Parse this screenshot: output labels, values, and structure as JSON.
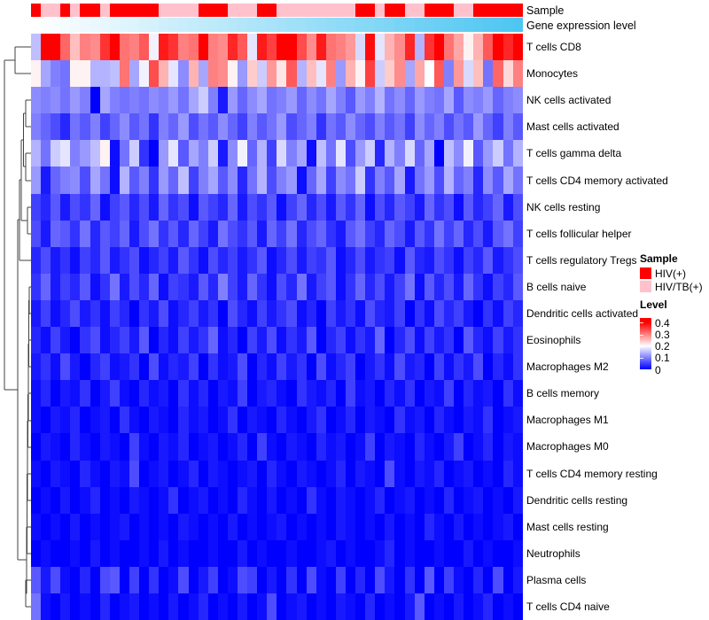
{
  "figure": {
    "background": "#FFFFFF"
  },
  "chart_data": {
    "type": "heatmap",
    "n_columns": 50,
    "row_labels": [
      "T cells CD8",
      "Monocytes",
      "NK cells activated",
      "Mast cells activated",
      "T cells gamma delta",
      "T cells CD4 memory activated",
      "NK cells resting",
      "T cells follicular helper",
      "T cells regulatory  Tregs",
      "B cells naive",
      "Dendritic cells activated",
      "Eosinophils",
      "Macrophages M2",
      "B cells memory",
      "Macrophages M1",
      "Macrophages M0",
      "T cells CD4 memory resting",
      "Dendritic cells resting",
      "Mast cells resting",
      "Neutrophils",
      "Plasma cells",
      "T cells CD4 naive"
    ],
    "color_scale": {
      "min": 0,
      "mid": 0.2,
      "max": 0.4,
      "low": "#0000FF",
      "mid_color": "#FFFFFF",
      "high": "#FF0000"
    },
    "values": [
      [
        0.15,
        0.44,
        0.42,
        0.32,
        0.25,
        0.3,
        0.29,
        0.36,
        0.43,
        0.31,
        0.3,
        0.33,
        0.19,
        0.38,
        0.36,
        0.3,
        0.31,
        0.44,
        0.3,
        0.29,
        0.37,
        0.33,
        0.18,
        0.38,
        0.35,
        0.41,
        0.44,
        0.34,
        0.29,
        0.38,
        0.31,
        0.3,
        0.28,
        0.17,
        0.39,
        0.18,
        0.26,
        0.29,
        0.37,
        0.14,
        0.36,
        0.42,
        0.31,
        0.27,
        0.21,
        0.26,
        0.33,
        0.41,
        0.37,
        0.44
      ],
      [
        0.21,
        0.13,
        0.1,
        0.09,
        0.21,
        0.21,
        0.14,
        0.14,
        0.15,
        0.31,
        0.13,
        0.19,
        0.34,
        0.26,
        0.18,
        0.11,
        0.26,
        0.13,
        0.3,
        0.29,
        0.21,
        0.12,
        0.24,
        0.16,
        0.28,
        0.22,
        0.33,
        0.14,
        0.25,
        0.18,
        0.3,
        0.12,
        0.26,
        0.21,
        0.35,
        0.16,
        0.24,
        0.29,
        0.13,
        0.27,
        0.2,
        0.33,
        0.1,
        0.28,
        0.17,
        0.25,
        0.09,
        0.32,
        0.23,
        0.3
      ],
      [
        0.11,
        0.1,
        0.11,
        0.09,
        0.12,
        0.1,
        0.0,
        0.13,
        0.1,
        0.09,
        0.1,
        0.09,
        0.11,
        0.1,
        0.12,
        0.09,
        0.13,
        0.16,
        0.1,
        0.02,
        0.12,
        0.08,
        0.11,
        0.13,
        0.09,
        0.1,
        0.12,
        0.08,
        0.11,
        0.09,
        0.13,
        0.1,
        0.07,
        0.12,
        0.1,
        0.14,
        0.09,
        0.11,
        0.08,
        0.12,
        0.1,
        0.09,
        0.13,
        0.07,
        0.11,
        0.1,
        0.12,
        0.08,
        0.1,
        0.11
      ],
      [
        0.1,
        0.08,
        0.06,
        0.03,
        0.09,
        0.07,
        0.1,
        0.05,
        0.08,
        0.11,
        0.07,
        0.09,
        0.04,
        0.1,
        0.08,
        0.12,
        0.06,
        0.09,
        0.07,
        0.11,
        0.08,
        0.05,
        0.1,
        0.07,
        0.09,
        0.12,
        0.06,
        0.08,
        0.1,
        0.04,
        0.09,
        0.07,
        0.11,
        0.08,
        0.06,
        0.1,
        0.07,
        0.09,
        0.05,
        0.11,
        0.08,
        0.1,
        0.06,
        0.09,
        0.07,
        0.12,
        0.08,
        0.05,
        0.1,
        0.07
      ],
      [
        0.14,
        0.09,
        0.16,
        0.18,
        0.1,
        0.12,
        0.15,
        0.21,
        0.01,
        0.09,
        0.16,
        0.04,
        0.0,
        0.12,
        0.18,
        0.07,
        0.13,
        0.1,
        0.16,
        0.02,
        0.11,
        0.19,
        0.08,
        0.14,
        0.05,
        0.17,
        0.1,
        0.13,
        0.01,
        0.15,
        0.09,
        0.18,
        0.06,
        0.12,
        0.16,
        0.03,
        0.14,
        0.1,
        0.17,
        0.08,
        0.13,
        0.0,
        0.15,
        0.11,
        0.19,
        0.07,
        0.12,
        0.16,
        0.09,
        0.14
      ],
      [
        0.12,
        0.02,
        0.08,
        0.1,
        0.11,
        0.06,
        0.13,
        0.09,
        0.01,
        0.14,
        0.07,
        0.1,
        0.04,
        0.12,
        0.08,
        0.15,
        0.05,
        0.1,
        0.13,
        0.07,
        0.11,
        0.03,
        0.09,
        0.14,
        0.06,
        0.1,
        0.12,
        0.01,
        0.08,
        0.13,
        0.05,
        0.11,
        0.09,
        0.16,
        0.04,
        0.1,
        0.07,
        0.13,
        0.02,
        0.09,
        0.12,
        0.06,
        0.14,
        0.08,
        0.1,
        0.03,
        0.11,
        0.07,
        0.13,
        0.09
      ],
      [
        0.05,
        0.03,
        0.07,
        0.02,
        0.06,
        0.04,
        0.08,
        0.01,
        0.05,
        0.07,
        0.03,
        0.06,
        0.02,
        0.08,
        0.04,
        0.06,
        0.01,
        0.07,
        0.05,
        0.03,
        0.08,
        0.02,
        0.06,
        0.04,
        0.07,
        0.01,
        0.05,
        0.08,
        0.03,
        0.06,
        0.02,
        0.07,
        0.04,
        0.08,
        0.01,
        0.06,
        0.03,
        0.07,
        0.05,
        0.02,
        0.08,
        0.04,
        0.06,
        0.01,
        0.07,
        0.03,
        0.05,
        0.08,
        0.02,
        0.06
      ],
      [
        0.06,
        0.02,
        0.08,
        0.07,
        0.04,
        0.09,
        0.03,
        0.07,
        0.05,
        0.08,
        0.02,
        0.06,
        0.09,
        0.04,
        0.07,
        0.03,
        0.08,
        0.05,
        0.02,
        0.09,
        0.06,
        0.04,
        0.07,
        0.02,
        0.08,
        0.05,
        0.09,
        0.03,
        0.06,
        0.08,
        0.04,
        0.02,
        0.07,
        0.09,
        0.05,
        0.03,
        0.08,
        0.06,
        0.02,
        0.07,
        0.04,
        0.09,
        0.05,
        0.08,
        0.03,
        0.06,
        0.02,
        0.07,
        0.09,
        0.05
      ],
      [
        0.03,
        0.06,
        0.02,
        0.04,
        0.01,
        0.05,
        0.03,
        0.07,
        0.02,
        0.04,
        0.06,
        0.01,
        0.03,
        0.05,
        0.02,
        0.07,
        0.04,
        0.01,
        0.06,
        0.03,
        0.05,
        0.02,
        0.04,
        0.07,
        0.01,
        0.03,
        0.06,
        0.02,
        0.05,
        0.04,
        0.07,
        0.01,
        0.03,
        0.06,
        0.02,
        0.04,
        0.05,
        0.01,
        0.07,
        0.03,
        0.02,
        0.06,
        0.04,
        0.01,
        0.05,
        0.03,
        0.07,
        0.02,
        0.04,
        0.06
      ],
      [
        0.04,
        0.08,
        0.02,
        0.05,
        0.03,
        0.07,
        0.01,
        0.04,
        0.09,
        0.02,
        0.06,
        0.03,
        0.08,
        0.01,
        0.05,
        0.04,
        0.02,
        0.07,
        0.03,
        0.1,
        0.05,
        0.02,
        0.08,
        0.04,
        0.01,
        0.06,
        0.03,
        0.09,
        0.02,
        0.05,
        0.07,
        0.01,
        0.04,
        0.08,
        0.03,
        0.06,
        0.02,
        0.05,
        0.09,
        0.01,
        0.07,
        0.03,
        0.06,
        0.02,
        0.08,
        0.04,
        0.01,
        0.05,
        0.03,
        0.07
      ],
      [
        0.02,
        0.05,
        0.01,
        0.03,
        0.06,
        0.02,
        0.04,
        0.01,
        0.05,
        0.03,
        0.0,
        0.04,
        0.02,
        0.06,
        0.01,
        0.03,
        0.05,
        0.02,
        0.04,
        0.0,
        0.06,
        0.03,
        0.01,
        0.05,
        0.02,
        0.04,
        0.06,
        0.01,
        0.03,
        0.0,
        0.05,
        0.02,
        0.04,
        0.01,
        0.06,
        0.03,
        0.02,
        0.05,
        0.0,
        0.04,
        0.01,
        0.06,
        0.03,
        0.05,
        0.02,
        0.0,
        0.04,
        0.01,
        0.05,
        0.03
      ],
      [
        0.03,
        0.01,
        0.05,
        0.02,
        0.0,
        0.04,
        0.06,
        0.01,
        0.03,
        0.05,
        0.02,
        0.07,
        0.0,
        0.03,
        0.01,
        0.05,
        0.02,
        0.04,
        0.08,
        0.01,
        0.03,
        0.0,
        0.05,
        0.02,
        0.06,
        0.01,
        0.04,
        0.02,
        0.07,
        0.0,
        0.03,
        0.05,
        0.01,
        0.04,
        0.02,
        0.08,
        0.0,
        0.03,
        0.06,
        0.01,
        0.05,
        0.02,
        0.04,
        0.0,
        0.07,
        0.03,
        0.01,
        0.05,
        0.02,
        0.04
      ],
      [
        0.02,
        0.04,
        0.01,
        0.06,
        0.02,
        0.0,
        0.03,
        0.05,
        0.01,
        0.02,
        0.04,
        0.0,
        0.06,
        0.01,
        0.03,
        0.02,
        0.05,
        0.0,
        0.04,
        0.01,
        0.02,
        0.06,
        0.0,
        0.03,
        0.01,
        0.05,
        0.02,
        0.04,
        0.0,
        0.06,
        0.01,
        0.03,
        0.05,
        0.0,
        0.02,
        0.04,
        0.01,
        0.06,
        0.02,
        0.03,
        0.0,
        0.05,
        0.01,
        0.04,
        0.02,
        0.06,
        0.0,
        0.03,
        0.01,
        0.04
      ],
      [
        0.01,
        0.03,
        0.0,
        0.02,
        0.01,
        0.04,
        0.0,
        0.02,
        0.05,
        0.01,
        0.0,
        0.03,
        0.01,
        0.02,
        0.0,
        0.04,
        0.01,
        0.03,
        0.0,
        0.02,
        0.01,
        0.05,
        0.0,
        0.02,
        0.03,
        0.01,
        0.0,
        0.04,
        0.02,
        0.01,
        0.03,
        0.0,
        0.05,
        0.01,
        0.02,
        0.0,
        0.03,
        0.01,
        0.04,
        0.0,
        0.02,
        0.01,
        0.05,
        0.0,
        0.03,
        0.01,
        0.02,
        0.0,
        0.04,
        0.01
      ],
      [
        0.01,
        0.0,
        0.02,
        0.01,
        0.03,
        0.0,
        0.01,
        0.02,
        0.0,
        0.04,
        0.01,
        0.0,
        0.02,
        0.01,
        0.0,
        0.03,
        0.01,
        0.02,
        0.0,
        0.01,
        0.04,
        0.0,
        0.02,
        0.01,
        0.0,
        0.03,
        0.01,
        0.0,
        0.02,
        0.04,
        0.0,
        0.01,
        0.03,
        0.0,
        0.02,
        0.01,
        0.0,
        0.04,
        0.01,
        0.02,
        0.0,
        0.03,
        0.01,
        0.0,
        0.02,
        0.01,
        0.04,
        0.0,
        0.01,
        0.02
      ],
      [
        0.0,
        0.02,
        0.01,
        0.0,
        0.03,
        0.01,
        0.0,
        0.02,
        0.01,
        0.0,
        0.05,
        0.01,
        0.0,
        0.02,
        0.01,
        0.03,
        0.0,
        0.01,
        0.02,
        0.0,
        0.01,
        0.03,
        0.0,
        0.05,
        0.01,
        0.0,
        0.02,
        0.01,
        0.0,
        0.03,
        0.01,
        0.02,
        0.0,
        0.01,
        0.05,
        0.0,
        0.02,
        0.01,
        0.0,
        0.03,
        0.01,
        0.0,
        0.02,
        0.05,
        0.0,
        0.01,
        0.03,
        0.0,
        0.02,
        0.01
      ],
      [
        0.01,
        0.0,
        0.02,
        0.01,
        0.0,
        0.03,
        0.01,
        0.0,
        0.02,
        0.01,
        0.06,
        0.0,
        0.01,
        0.02,
        0.0,
        0.01,
        0.03,
        0.0,
        0.02,
        0.01,
        0.0,
        0.01,
        0.02,
        0.0,
        0.03,
        0.01,
        0.0,
        0.02,
        0.01,
        0.0,
        0.01,
        0.03,
        0.0,
        0.02,
        0.01,
        0.0,
        0.06,
        0.01,
        0.0,
        0.02,
        0.01,
        0.03,
        0.0,
        0.01,
        0.02,
        0.0,
        0.01,
        0.0,
        0.03,
        0.01
      ],
      [
        0.0,
        0.01,
        0.0,
        0.02,
        0.0,
        0.01,
        0.03,
        0.0,
        0.01,
        0.0,
        0.02,
        0.01,
        0.0,
        0.01,
        0.04,
        0.0,
        0.01,
        0.02,
        0.0,
        0.01,
        0.0,
        0.03,
        0.01,
        0.0,
        0.02,
        0.0,
        0.01,
        0.0,
        0.04,
        0.01,
        0.0,
        0.02,
        0.01,
        0.0,
        0.01,
        0.03,
        0.0,
        0.01,
        0.02,
        0.0,
        0.01,
        0.0,
        0.03,
        0.0,
        0.01,
        0.02,
        0.0,
        0.01,
        0.0,
        0.02
      ],
      [
        0.01,
        0.0,
        0.01,
        0.0,
        0.02,
        0.0,
        0.01,
        0.0,
        0.01,
        0.02,
        0.0,
        0.01,
        0.0,
        0.01,
        0.0,
        0.02,
        0.01,
        0.0,
        0.01,
        0.0,
        0.02,
        0.0,
        0.01,
        0.0,
        0.01,
        0.02,
        0.0,
        0.01,
        0.0,
        0.01,
        0.0,
        0.02,
        0.01,
        0.0,
        0.01,
        0.0,
        0.02,
        0.0,
        0.01,
        0.0,
        0.03,
        0.01,
        0.0,
        0.02,
        0.0,
        0.01,
        0.0,
        0.01,
        0.02,
        0.0
      ],
      [
        0.0,
        0.01,
        0.0,
        0.0,
        0.01,
        0.0,
        0.02,
        0.0,
        0.01,
        0.0,
        0.0,
        0.01,
        0.0,
        0.02,
        0.0,
        0.01,
        0.0,
        0.0,
        0.01,
        0.0,
        0.0,
        0.02,
        0.0,
        0.01,
        0.0,
        0.0,
        0.01,
        0.0,
        0.0,
        0.01,
        0.02,
        0.0,
        0.01,
        0.0,
        0.0,
        0.01,
        0.03,
        0.0,
        0.01,
        0.0,
        0.0,
        0.01,
        0.0,
        0.0,
        0.02,
        0.0,
        0.01,
        0.0,
        0.0,
        0.01
      ],
      [
        0.07,
        0.02,
        0.06,
        0.01,
        0.0,
        0.03,
        0.0,
        0.06,
        0.07,
        0.0,
        0.05,
        0.0,
        0.04,
        0.0,
        0.01,
        0.06,
        0.0,
        0.02,
        0.05,
        0.0,
        0.01,
        0.06,
        0.05,
        0.0,
        0.02,
        0.0,
        0.04,
        0.0,
        0.06,
        0.01,
        0.0,
        0.05,
        0.0,
        0.03,
        0.0,
        0.06,
        0.02,
        0.0,
        0.04,
        0.0,
        0.07,
        0.0,
        0.05,
        0.01,
        0.0,
        0.03,
        0.0,
        0.06,
        0.0,
        0.02
      ],
      [
        0.09,
        0.01,
        0.0,
        0.02,
        0.0,
        0.01,
        0.0,
        0.03,
        0.0,
        0.01,
        0.02,
        0.0,
        0.01,
        0.0,
        0.02,
        0.0,
        0.01,
        0.03,
        0.0,
        0.01,
        0.0,
        0.02,
        0.0,
        0.01,
        0.06,
        0.0,
        0.01,
        0.02,
        0.0,
        0.01,
        0.0,
        0.02,
        0.01,
        0.0,
        0.03,
        0.0,
        0.01,
        0.0,
        0.02,
        0.07,
        0.0,
        0.01,
        0.0,
        0.02,
        0.0,
        0.01,
        0.03,
        0.0,
        0.01,
        0.0
      ]
    ],
    "annotations": {
      "sample": {
        "label": "Sample",
        "codes": [
          "H",
          "T",
          "T",
          "H",
          "T",
          "H",
          "H",
          "T",
          "H",
          "H",
          "H",
          "H",
          "H",
          "T",
          "T",
          "T",
          "T",
          "H",
          "H",
          "H",
          "T",
          "T",
          "T",
          "H",
          "H",
          "T",
          "T",
          "T",
          "T",
          "T",
          "T",
          "T",
          "T",
          "H",
          "H",
          "T",
          "H",
          "H",
          "T",
          "T",
          "H",
          "H",
          "H",
          "T",
          "T",
          "H",
          "H",
          "H",
          "H",
          "H"
        ],
        "groups": {
          "H": {
            "label": "HIV(+)",
            "color": "#FF0000"
          },
          "T": {
            "label": "HIV/TB(+)",
            "color": "#FFC1CC"
          }
        }
      },
      "gene_expression": {
        "label": "Gene expression level",
        "low_color": "#FFFFFF",
        "high_color": "#4EC6F2",
        "values": [
          0,
          0.02,
          0.04,
          0.06,
          0.08,
          0.1,
          0.12,
          0.14,
          0.16,
          0.18,
          0.2,
          0.22,
          0.24,
          0.27,
          0.29,
          0.31,
          0.33,
          0.35,
          0.37,
          0.39,
          0.41,
          0.43,
          0.45,
          0.47,
          0.49,
          0.51,
          0.53,
          0.55,
          0.57,
          0.59,
          0.61,
          0.63,
          0.65,
          0.67,
          0.69,
          0.71,
          0.73,
          0.76,
          0.78,
          0.8,
          0.82,
          0.84,
          0.86,
          0.88,
          0.9,
          0.92,
          0.94,
          0.96,
          0.98,
          1.0
        ]
      }
    },
    "legend": {
      "sample_title": "Sample",
      "sample_items": [
        {
          "label": "HIV(+)",
          "color": "#FF0000"
        },
        {
          "label": "HIV/TB(+)",
          "color": "#FFC1CC"
        }
      ],
      "level_title": "Level",
      "level_ticks": [
        "0.4",
        "0.3",
        "0.2",
        "0.1",
        "0"
      ],
      "level_top_value": 0.44,
      "level_bottom_value": 0
    },
    "layout": {
      "legend_position": "right",
      "row_dendrogram": true,
      "grid": false
    }
  }
}
